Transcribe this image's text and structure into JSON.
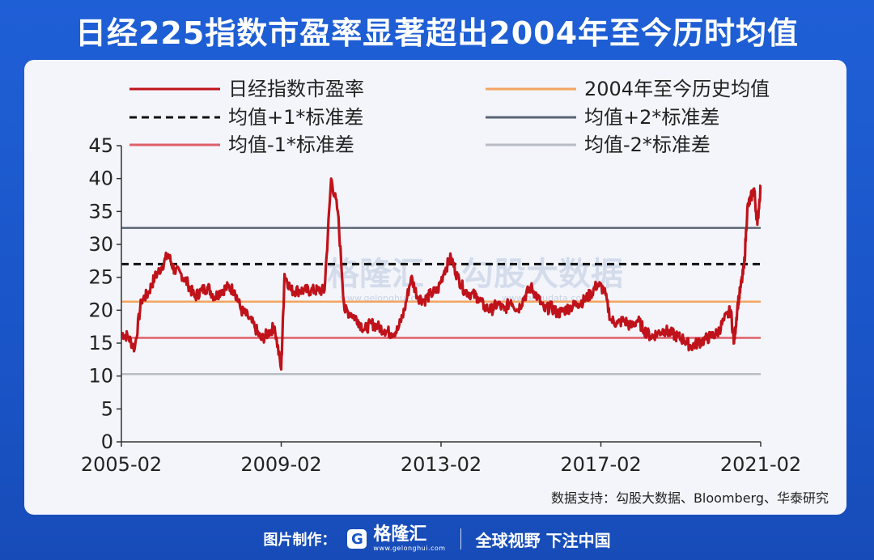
{
  "page": {
    "title": "日经225指数市盈率显著超出2004年至今历时均值",
    "source": "数据支持：勾股大数据、Bloomberg、华泰研究",
    "watermark_1": "格隆汇",
    "watermark_2": "勾股大数据",
    "watermark_url_1": "www.gelonghui.com",
    "watermark_url_2": "www.gogudata.com"
  },
  "footer": {
    "credit_label": "图片制作：",
    "logo_letter": "G",
    "logo_name": "格隆汇",
    "logo_domain": "www.gelonghui.com",
    "slogan": "全球视野 下注中国"
  },
  "chart_data": {
    "type": "line",
    "x_tick_labels": [
      "2005-02",
      "2009-02",
      "2013-02",
      "2017-02",
      "2021-02"
    ],
    "xlim": [
      "2005-02",
      "2021-02"
    ],
    "ylim": [
      0,
      45
    ],
    "y_ticks": [
      0,
      5,
      10,
      15,
      20,
      25,
      30,
      35,
      40,
      45
    ],
    "grid": false,
    "legend_position": "top",
    "series": [
      {
        "name": "日经指数市盈率",
        "style": "line",
        "color": "#c0121a",
        "points": [
          [
            "2005-02",
            16.5
          ],
          [
            "2005-04",
            16.0
          ],
          [
            "2005-06",
            14.2
          ],
          [
            "2005-08",
            21.5
          ],
          [
            "2005-10",
            22.5
          ],
          [
            "2005-12",
            25.0
          ],
          [
            "2006-02",
            26.5
          ],
          [
            "2006-04",
            28.5
          ],
          [
            "2006-06",
            26.0
          ],
          [
            "2006-08",
            25.5
          ],
          [
            "2006-10",
            24.0
          ],
          [
            "2006-12",
            22.0
          ],
          [
            "2007-02",
            23.0
          ],
          [
            "2007-04",
            23.5
          ],
          [
            "2007-06",
            22.0
          ],
          [
            "2007-08",
            23.0
          ],
          [
            "2007-10",
            23.5
          ],
          [
            "2007-12",
            23.0
          ],
          [
            "2008-02",
            20.0
          ],
          [
            "2008-04",
            19.0
          ],
          [
            "2008-06",
            17.5
          ],
          [
            "2008-08",
            15.5
          ],
          [
            "2008-10",
            16.5
          ],
          [
            "2008-12",
            17.5
          ],
          [
            "2009-02",
            11.0
          ],
          [
            "2009-03",
            25.5
          ],
          [
            "2009-05",
            23.0
          ],
          [
            "2009-07",
            23.0
          ],
          [
            "2009-09",
            23.0
          ],
          [
            "2009-11",
            23.0
          ],
          [
            "2010-01",
            23.0
          ],
          [
            "2010-03",
            23.0
          ],
          [
            "2010-05",
            40.0
          ],
          [
            "2010-07",
            35.0
          ],
          [
            "2010-09",
            20.0
          ],
          [
            "2010-11",
            19.5
          ],
          [
            "2011-01",
            18.5
          ],
          [
            "2011-03",
            17.0
          ],
          [
            "2011-05",
            18.0
          ],
          [
            "2011-07",
            17.5
          ],
          [
            "2011-09",
            17.0
          ],
          [
            "2011-11",
            16.5
          ],
          [
            "2012-01",
            17.0
          ],
          [
            "2012-03",
            20.0
          ],
          [
            "2012-05",
            25.0
          ],
          [
            "2012-07",
            22.0
          ],
          [
            "2012-09",
            21.5
          ],
          [
            "2012-11",
            22.5
          ],
          [
            "2013-01",
            23.0
          ],
          [
            "2013-03",
            26.0
          ],
          [
            "2013-05",
            28.0
          ],
          [
            "2013-07",
            25.0
          ],
          [
            "2013-09",
            23.0
          ],
          [
            "2013-11",
            22.5
          ],
          [
            "2014-01",
            22.0
          ],
          [
            "2014-03",
            20.5
          ],
          [
            "2014-05",
            20.0
          ],
          [
            "2014-07",
            21.0
          ],
          [
            "2014-09",
            20.0
          ],
          [
            "2014-11",
            21.5
          ],
          [
            "2015-01",
            20.0
          ],
          [
            "2015-03",
            22.0
          ],
          [
            "2015-05",
            23.5
          ],
          [
            "2015-07",
            22.0
          ],
          [
            "2015-09",
            20.0
          ],
          [
            "2015-11",
            20.5
          ],
          [
            "2016-01",
            19.5
          ],
          [
            "2016-03",
            20.0
          ],
          [
            "2016-05",
            20.5
          ],
          [
            "2016-07",
            21.0
          ],
          [
            "2016-09",
            21.5
          ],
          [
            "2016-11",
            22.5
          ],
          [
            "2017-01",
            24.0
          ],
          [
            "2017-03",
            23.0
          ],
          [
            "2017-05",
            18.5
          ],
          [
            "2017-07",
            18.0
          ],
          [
            "2017-09",
            18.5
          ],
          [
            "2017-11",
            17.5
          ],
          [
            "2018-01",
            18.5
          ],
          [
            "2018-03",
            17.0
          ],
          [
            "2018-05",
            16.0
          ],
          [
            "2018-07",
            16.5
          ],
          [
            "2018-09",
            17.0
          ],
          [
            "2018-11",
            16.5
          ],
          [
            "2019-01",
            16.0
          ],
          [
            "2019-03",
            15.5
          ],
          [
            "2019-05",
            14.5
          ],
          [
            "2019-07",
            15.0
          ],
          [
            "2019-09",
            15.5
          ],
          [
            "2019-11",
            16.0
          ],
          [
            "2020-01",
            16.5
          ],
          [
            "2020-03",
            18.5
          ],
          [
            "2020-05",
            20.0
          ],
          [
            "2020-06",
            15.0
          ],
          [
            "2020-07",
            20.5
          ],
          [
            "2020-08",
            23.5
          ],
          [
            "2020-09",
            26.5
          ],
          [
            "2020-10",
            35.5
          ],
          [
            "2020-11",
            37.0
          ],
          [
            "2020-12",
            38.5
          ],
          [
            "2021-01",
            33.0
          ],
          [
            "2021-02",
            39.0
          ]
        ]
      },
      {
        "name": "2004年至今历史均值",
        "style": "line",
        "color": "#f4a460",
        "value": 21.3
      },
      {
        "name": "均值+1*标准差",
        "style": "dashed",
        "color": "#111111",
        "value": 27.0
      },
      {
        "name": "均值+2*标准差",
        "style": "line",
        "color": "#5a6475",
        "value": 32.5
      },
      {
        "name": "均值-1*标准差",
        "style": "line",
        "color": "#e0606a",
        "value": 15.8
      },
      {
        "name": "均值-2*标准差",
        "style": "line",
        "color": "#b8bcc4",
        "value": 10.3
      }
    ]
  }
}
